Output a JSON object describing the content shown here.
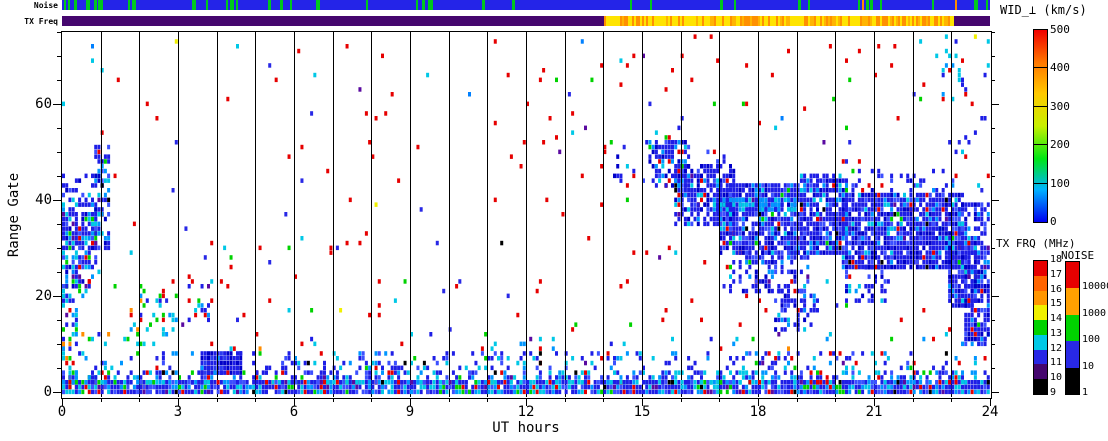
{
  "strips": {
    "noise_label": "Noise",
    "txfreq_label": "TX Freq",
    "noise": {
      "base_color": "#2424E8",
      "green_color": "#00C81E",
      "green_density": 0.09,
      "green_density_left": 0.22,
      "left_until_hour": 3,
      "orange_color": "#FF8C00",
      "orange_lines_t": [
        20.68,
        23.1
      ],
      "seed": 77
    },
    "txfreq": {
      "segments": [
        {
          "t0": 0,
          "t1": 14.02,
          "colors": [
            "#45066E"
          ],
          "weights": [
            1
          ]
        },
        {
          "t0": 14.02,
          "t1": 23.08,
          "colors": [
            "#FFE400",
            "#FF9000",
            "#FFB400"
          ],
          "weights": [
            0.5,
            0.32,
            0.18
          ]
        },
        {
          "t0": 23.08,
          "t1": 24,
          "colors": [
            "#45066E"
          ],
          "weights": [
            1
          ]
        }
      ],
      "seed": 13
    }
  },
  "axes": {
    "x": {
      "title": "UT hours",
      "min": 0,
      "max": 24,
      "labeled_ticks": [
        0,
        3,
        6,
        9,
        12,
        15,
        18,
        21,
        24
      ],
      "minor_step": 1
    },
    "y": {
      "title": "Range Gate",
      "min": 0,
      "max": 75,
      "labeled_ticks": [
        0,
        20,
        40,
        60
      ],
      "minor_step": 5
    }
  },
  "colorbars": {
    "wid": {
      "title": "WID_⊥ (km/s)",
      "tick_labels_bottom_to_top": [
        "0",
        "100",
        "200",
        "300",
        "400",
        "500"
      ],
      "gradient_bottom_to_top": [
        "#0000F0",
        "#00B4FF",
        "#00E614",
        "#C8F000",
        "#FFC800",
        "#FF7800",
        "#F00000"
      ]
    },
    "txfrq": {
      "title": "TX FRQ (MHz)",
      "segment_colors_bottom_to_top": [
        "#000000",
        "#45066E",
        "#2828E6",
        "#00C8E6",
        "#00D200",
        "#F0F000",
        "#FF9600",
        "#FF6400",
        "#E60000"
      ],
      "boundary_labels_bottom_to_top": [
        "9",
        "10",
        "11",
        "12",
        "13",
        "14",
        "15",
        "16",
        "17",
        "18"
      ]
    },
    "noise": {
      "title": "NOISE",
      "segment_colors_bottom_to_top": [
        "#000000",
        "#2828E6",
        "#00D200",
        "#FFA000",
        "#E60000"
      ],
      "boundary_labels_bottom_to_top": [
        "1",
        "10",
        "100",
        "1000",
        "10000"
      ]
    }
  },
  "chart_data": {
    "type": "heatmap",
    "xlabel": "UT hours",
    "ylabel": "Range Gate",
    "xlim": [
      0,
      24
    ],
    "ylim": [
      0,
      75
    ],
    "grid": "vertical line every hour",
    "legend_position": "right",
    "cols_per_hour": 12,
    "seed": 42,
    "palettes": {
      "noise": [
        [
          "#E60000",
          0.6
        ],
        [
          "#2828E6",
          0.12
        ],
        [
          "#00C8E6",
          0.09
        ],
        [
          "#00D200",
          0.08
        ],
        [
          "#0080FF",
          0.04
        ],
        [
          "#5A0AA0",
          0.04
        ],
        [
          "#F0F000",
          0.01
        ],
        [
          "#000000",
          0.02
        ]
      ],
      "blob": [
        [
          "#1E1EE6",
          0.55
        ],
        [
          "#0000C8",
          0.15
        ],
        [
          "#3C50FF",
          0.12
        ],
        [
          "#0096FF",
          0.08
        ],
        [
          "#00C8E6",
          0.05
        ],
        [
          "#E60000",
          0.02
        ],
        [
          "#00D200",
          0.01
        ],
        [
          "#5A0AA0",
          0.01
        ],
        [
          "#000000",
          0.01
        ]
      ],
      "leftblob": [
        [
          "#1E1EE6",
          0.45
        ],
        [
          "#0000C8",
          0.1
        ],
        [
          "#3C50FF",
          0.1
        ],
        [
          "#0096FF",
          0.12
        ],
        [
          "#00C8E6",
          0.12
        ],
        [
          "#00D200",
          0.05
        ],
        [
          "#E60000",
          0.03
        ],
        [
          "#5A0AA0",
          0.02
        ],
        [
          "#000000",
          0.01
        ]
      ],
      "solidblue": [
        [
          "#1E1EE6",
          0.6
        ],
        [
          "#0000C8",
          0.25
        ],
        [
          "#2A3CF0",
          0.15
        ]
      ],
      "bottom": [
        [
          "#1E1EE6",
          0.42
        ],
        [
          "#0096FF",
          0.14
        ],
        [
          "#00C8E6",
          0.18
        ],
        [
          "#3C50FF",
          0.12
        ],
        [
          "#E60000",
          0.06
        ],
        [
          "#00D200",
          0.04
        ],
        [
          "#000000",
          0.02
        ],
        [
          "#5A0AA0",
          0.02
        ]
      ],
      "leftmix": [
        [
          "#00C8E6",
          0.28
        ],
        [
          "#1E1EE6",
          0.26
        ],
        [
          "#0096FF",
          0.16
        ],
        [
          "#00D200",
          0.14
        ],
        [
          "#E60000",
          0.08
        ],
        [
          "#F0F000",
          0.02
        ],
        [
          "#5A0AA0",
          0.03
        ],
        [
          "#FF8C00",
          0.03
        ]
      ],
      "cyanmix": [
        [
          "#00C8E6",
          0.34
        ],
        [
          "#1E1EE6",
          0.24
        ],
        [
          "#0096FF",
          0.12
        ],
        [
          "#00D200",
          0.14
        ],
        [
          "#E60000",
          0.1
        ],
        [
          "#FF8C00",
          0.03
        ],
        [
          "#5A0AA0",
          0.03
        ]
      ],
      "streak": [
        [
          "#0096FF",
          0.45
        ],
        [
          "#00C8E6",
          0.3
        ],
        [
          "#1E1EE6",
          0.25
        ]
      ],
      "topright": [
        [
          "#00C8E6",
          0.4
        ],
        [
          "#1E1EE6",
          0.3
        ],
        [
          "#0096FF",
          0.15
        ],
        [
          "#E60000",
          0.15
        ]
      ]
    },
    "regions": [
      {
        "t": [
          0,
          24
        ],
        "g": [
          0,
          75
        ],
        "d": 0.013,
        "p": "noise"
      },
      {
        "t": [
          0,
          24
        ],
        "g": [
          9,
          13
        ],
        "d": 0.04,
        "p": "cyanmix"
      },
      {
        "t": [
          0,
          0.35
        ],
        "g": [
          0,
          24
        ],
        "d": 0.4,
        "p": "leftmix"
      },
      {
        "t": [
          0.3,
          2.6
        ],
        "g": [
          0,
          13
        ],
        "d": 0.1,
        "p": "leftmix"
      },
      {
        "t": [
          0.05,
          0.9
        ],
        "g": [
          26,
          38
        ],
        "d": 0.85,
        "p": "leftblob"
      },
      {
        "t": [
          0.05,
          0.95
        ],
        "g": [
          38,
          46
        ],
        "d": 0.4,
        "p": "leftblob"
      },
      {
        "t": [
          0.85,
          1.2
        ],
        "g": [
          30,
          52
        ],
        "d": 0.55,
        "p": "leftblob"
      },
      {
        "t": [
          0,
          0.95
        ],
        "g": [
          20,
          26
        ],
        "d": 0.3,
        "p": "leftblob"
      },
      {
        "t": [
          1.7,
          3.1
        ],
        "g": [
          12,
          22
        ],
        "d": 0.22,
        "p": "cyanmix"
      },
      {
        "t": [
          3.3,
          3.9
        ],
        "g": [
          15,
          24
        ],
        "d": 0.3,
        "p": "cyanmix"
      },
      {
        "t": [
          3.65,
          4.6
        ],
        "g": [
          4,
          9
        ],
        "d": 0.95,
        "p": "solidblue"
      },
      {
        "t": [
          0,
          24
        ],
        "g": [
          0,
          2.5
        ],
        "d": 0.92,
        "p": "bottom",
        "above": true
      },
      {
        "t": [
          0,
          24
        ],
        "g": [
          2.5,
          5
        ],
        "d": 0.45,
        "p": "bottom"
      },
      {
        "t": [
          5,
          24
        ],
        "g": [
          5,
          9
        ],
        "d": 0.22,
        "p": "bottom"
      },
      {
        "t": [
          0,
          5
        ],
        "g": [
          5,
          9
        ],
        "d": 0.07,
        "p": "bottom"
      },
      {
        "t": [
          14.3,
          15.3
        ],
        "g": [
          44,
          54
        ],
        "d": 0.1,
        "p": "blob"
      },
      {
        "t": [
          15.3,
          16.25
        ],
        "g": [
          43,
          53
        ],
        "d": 0.6,
        "p": "blob"
      },
      {
        "t": [
          15.4,
          16.15
        ],
        "g": [
          53,
          58
        ],
        "d": 0.18,
        "p": "cyanmix"
      },
      {
        "t": [
          15.9,
          17.4
        ],
        "g": [
          35,
          48
        ],
        "d": 0.72,
        "p": "blob"
      },
      {
        "t": [
          16.2,
          17.2
        ],
        "g": [
          47,
          52
        ],
        "d": 0.15,
        "p": "blob"
      },
      {
        "t": [
          17.0,
          19.05
        ],
        "g": [
          29,
          44
        ],
        "d": 0.8,
        "p": "blob"
      },
      {
        "t": [
          17.3,
          19.3
        ],
        "g": [
          21,
          30
        ],
        "d": 0.4,
        "p": "blob"
      },
      {
        "t": [
          18.45,
          19.55
        ],
        "g": [
          13,
          22
        ],
        "d": 0.4,
        "p": "blob"
      },
      {
        "t": [
          16.9,
          19.0
        ],
        "g": [
          38.5,
          41
        ],
        "d": 0.85,
        "p": "streak"
      },
      {
        "t": [
          19.15,
          20.3
        ],
        "g": [
          29,
          46
        ],
        "d": 0.85,
        "p": "blob"
      },
      {
        "t": [
          20.2,
          23.3
        ],
        "g": [
          26,
          42
        ],
        "d": 0.85,
        "p": "blob"
      },
      {
        "t": [
          20.2,
          23.2
        ],
        "g": [
          42,
          47
        ],
        "d": 0.22,
        "p": "blob"
      },
      {
        "t": [
          20.3,
          21.4
        ],
        "g": [
          19,
          27
        ],
        "d": 0.3,
        "p": "blob"
      },
      {
        "t": [
          23.2,
          24
        ],
        "g": [
          30,
          40
        ],
        "d": 0.65,
        "p": "blob"
      },
      {
        "t": [
          22.95,
          23.6
        ],
        "g": [
          18,
          32
        ],
        "d": 0.75,
        "p": "blob"
      },
      {
        "t": [
          23.4,
          24
        ],
        "g": [
          10,
          30
        ],
        "d": 0.8,
        "p": "blob"
      },
      {
        "t": [
          22.8,
          24
        ],
        "g": [
          48,
          75
        ],
        "d": 0.07,
        "p": "topright"
      }
    ]
  }
}
